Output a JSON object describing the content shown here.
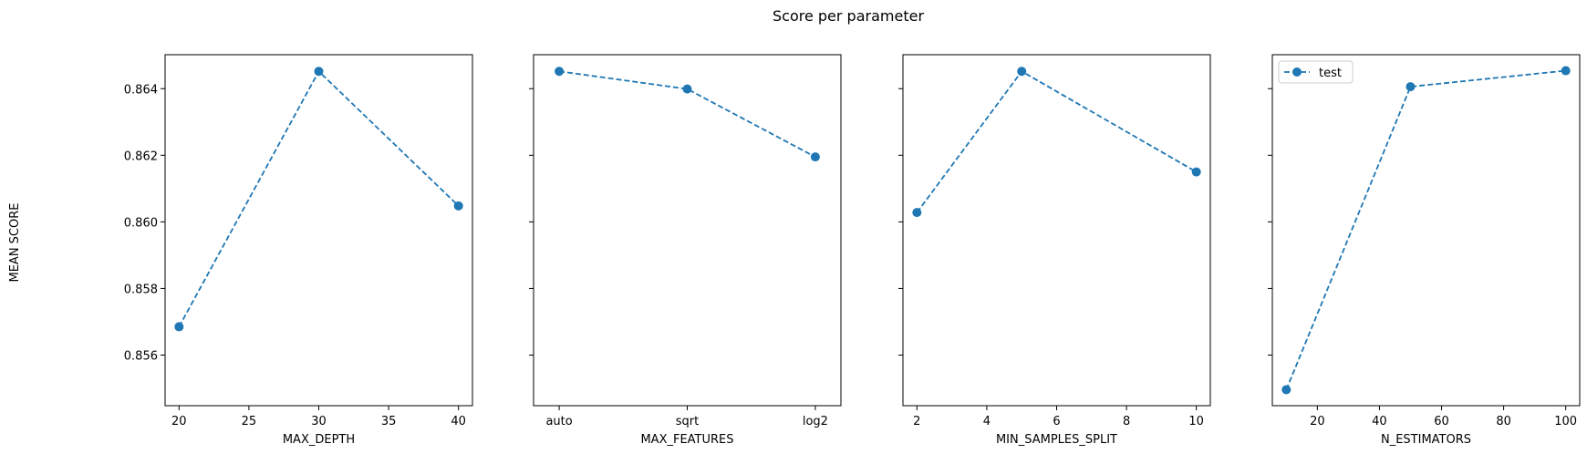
{
  "figure": {
    "title": "Score per parameter",
    "ylabel": "MEAN SCORE"
  },
  "chart_data": [
    {
      "type": "line",
      "x_kind": "numeric",
      "x": [
        20,
        30,
        40
      ],
      "xlabel": "MAX_DEPTH",
      "xlim": [
        19,
        41
      ],
      "xticks": [
        20,
        25,
        30,
        35,
        40
      ],
      "series": [
        {
          "name": "test",
          "values": [
            0.85685,
            0.86452,
            0.86048
          ]
        }
      ],
      "ylim": [
        0.85448,
        0.86502
      ],
      "yticks": [
        0.856,
        0.858,
        0.86,
        0.862,
        0.864
      ],
      "ytick_labels": [
        "0.856",
        "0.858",
        "0.860",
        "0.862",
        "0.864"
      ],
      "show_yticklabels": true,
      "legend": null
    },
    {
      "type": "line",
      "x_kind": "categorical",
      "categories": [
        "auto",
        "sqrt",
        "log2"
      ],
      "xlabel": "MAX_FEATURES",
      "series": [
        {
          "name": "test",
          "values": [
            0.86452,
            0.86399,
            0.86195
          ]
        }
      ],
      "ylim": [
        0.85448,
        0.86502
      ],
      "yticks": [
        0.856,
        0.858,
        0.86,
        0.862,
        0.864
      ],
      "show_yticklabels": false,
      "legend": null
    },
    {
      "type": "line",
      "x_kind": "numeric",
      "x": [
        2,
        5,
        10
      ],
      "xlabel": "MIN_SAMPLES_SPLIT",
      "xlim": [
        1.6,
        10.4
      ],
      "xticks": [
        2,
        4,
        6,
        8,
        10
      ],
      "series": [
        {
          "name": "test",
          "values": [
            0.86028,
            0.86452,
            0.8615
          ]
        }
      ],
      "ylim": [
        0.85448,
        0.86502
      ],
      "yticks": [
        0.856,
        0.858,
        0.86,
        0.862,
        0.864
      ],
      "show_yticklabels": false,
      "legend": null
    },
    {
      "type": "line",
      "x_kind": "numeric",
      "x": [
        10,
        50,
        100
      ],
      "xlabel": "N_ESTIMATORS",
      "xlim": [
        5.5,
        104.5
      ],
      "xticks": [
        20,
        40,
        60,
        80,
        100
      ],
      "series": [
        {
          "name": "test",
          "values": [
            0.85496,
            0.86406,
            0.86454
          ]
        }
      ],
      "ylim": [
        0.85448,
        0.86502
      ],
      "yticks": [
        0.856,
        0.858,
        0.86,
        0.862,
        0.864
      ],
      "show_yticklabels": false,
      "legend": "top-left"
    }
  ],
  "colors": {
    "series": "#1f77b4",
    "axes": "#000000"
  }
}
